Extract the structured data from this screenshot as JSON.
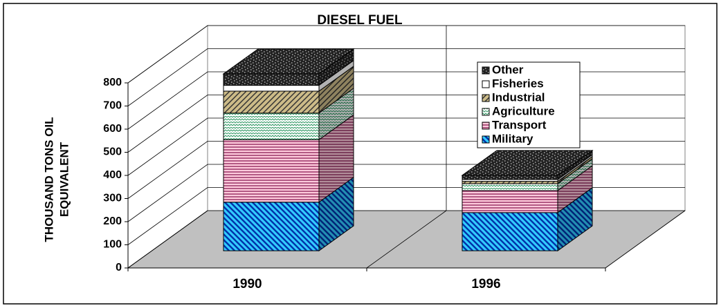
{
  "chart_data": {
    "type": "bar3d_stacked",
    "title": "DIESEL FUEL",
    "y_label": [
      "THOUSAND TONS OIL",
      "EQUIVALENT"
    ],
    "categories": [
      "1990",
      "1996"
    ],
    "series": [
      {
        "name": "Military",
        "color": "#33ccff",
        "hatch": "#0033aa",
        "pattern": "diagonal",
        "values": [
          210,
          165
        ]
      },
      {
        "name": "Transport",
        "color": "#ffccdd",
        "hatch": "#993366",
        "pattern": "horizontal",
        "values": [
          270,
          95
        ]
      },
      {
        "name": "Agriculture",
        "color": "#ffffff",
        "hatch": "#339966",
        "pattern": "zigzag",
        "values": [
          115,
          30
        ]
      },
      {
        "name": "Industrial",
        "color": "#ccbb88",
        "hatch": "#333333",
        "pattern": "diagonal2",
        "values": [
          95,
          10
        ]
      },
      {
        "name": "Fisheries",
        "color": "#ffffff",
        "hatch": "#ffffff",
        "pattern": "solid",
        "values": [
          25,
          8
        ]
      },
      {
        "name": "Other",
        "color": "#222222",
        "hatch": "#aaaaaa",
        "pattern": "dots",
        "values": [
          50,
          18
        ]
      }
    ],
    "ylim": [
      0,
      800
    ],
    "yticks": [
      0,
      100,
      200,
      300,
      400,
      500,
      600,
      700,
      800
    ],
    "grid": true,
    "legend": "upper-right"
  }
}
